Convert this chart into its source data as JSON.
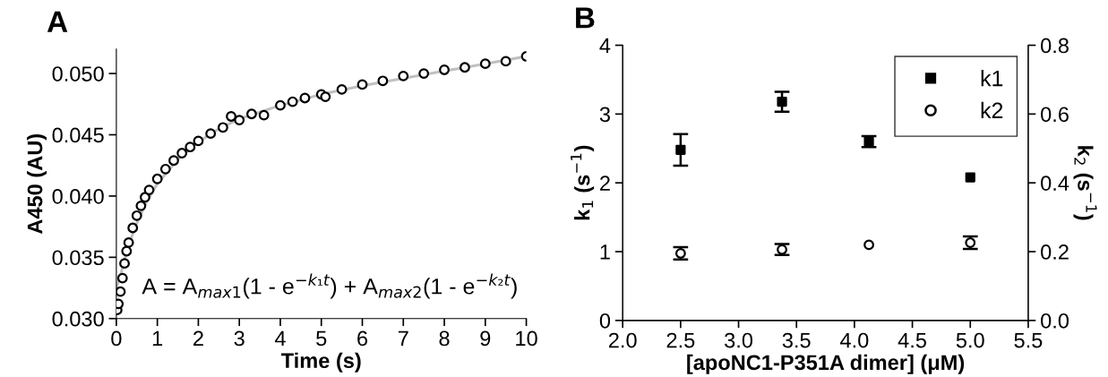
{
  "chart_data": [
    {
      "type": "scatter",
      "xlabel": "Time (s)",
      "ylabel": "A450 (AU)",
      "annotations": [
        "A",
        "A = A$_{max1}$(1 - e$^{−k₁t}$) + A$_{max2}$(1 - e$^{−k₂t}$)"
      ],
      "xlim": [
        0,
        10
      ],
      "xticks": [
        0,
        1,
        2,
        3,
        4,
        5,
        6,
        7,
        8,
        9,
        10
      ],
      "ylim": [
        0.03,
        0.052
      ],
      "yticks": [
        {
          "value": 0.03,
          "label": "0.030"
        },
        {
          "value": 0.035,
          "label": "0.035"
        },
        {
          "value": 0.04,
          "label": "0.040"
        },
        {
          "value": 0.045,
          "label": "0.045"
        },
        {
          "value": 0.05,
          "label": "0.050"
        }
      ],
      "grid": false,
      "legend": false,
      "series": [
        {
          "type": "scatter",
          "marker": "circle",
          "color": "#000000",
          "x": [
            0.02,
            0.05,
            0.1,
            0.15,
            0.2,
            0.25,
            0.3,
            0.4,
            0.5,
            0.6,
            0.7,
            0.8,
            1.0,
            1.2,
            1.4,
            1.6,
            1.8,
            2.0,
            2.3,
            2.6,
            2.8,
            3.0,
            3.3,
            3.6,
            4.0,
            4.3,
            4.6,
            5.0,
            5.1,
            5.5,
            6.0,
            6.5,
            7.0,
            7.5,
            8.0,
            8.5,
            9.0,
            9.5,
            10.0
          ],
          "values": [
            0.0307,
            0.0312,
            0.0322,
            0.0333,
            0.0345,
            0.0355,
            0.0362,
            0.0374,
            0.0384,
            0.0392,
            0.0399,
            0.0405,
            0.0414,
            0.0422,
            0.0429,
            0.0435,
            0.044,
            0.0445,
            0.0451,
            0.0456,
            0.0465,
            0.0462,
            0.0467,
            0.0466,
            0.0474,
            0.0477,
            0.048,
            0.0483,
            0.0481,
            0.0487,
            0.0491,
            0.0494,
            0.0498,
            0.05,
            0.0503,
            0.0505,
            0.0508,
            0.051,
            0.0514
          ]
        },
        {
          "type": "line",
          "marker": "none",
          "line_style": "solid",
          "color": "#c0c0c0",
          "x": [
            0,
            0.1,
            0.2,
            0.3,
            0.5,
            0.75,
            1,
            1.5,
            2,
            2.5,
            3,
            4,
            5,
            6,
            7,
            8,
            9,
            10
          ],
          "values": [
            0.0325,
            0.0335,
            0.0348,
            0.036,
            0.0378,
            0.0396,
            0.041,
            0.043,
            0.0444,
            0.0455,
            0.0463,
            0.0474,
            0.0483,
            0.049,
            0.0496,
            0.0502,
            0.0508,
            0.0514
          ]
        }
      ]
    },
    {
      "type": "scatter",
      "xlabel": "[apoNC1-P351A dimer] (μM)",
      "ylabel": "k$_{1}$ (s$^{−1}$)",
      "y2label": "k$_{2}$ (s$^{−1}$)",
      "annotations": [
        "B"
      ],
      "xlim": [
        2.0,
        5.5
      ],
      "xticks": [
        {
          "value": 2.0,
          "label": "2.0"
        },
        {
          "value": 2.5,
          "label": "2.5"
        },
        {
          "value": 3.0,
          "label": "3.0"
        },
        {
          "value": 3.5,
          "label": "3.5"
        },
        {
          "value": 4.0,
          "label": "4.0"
        },
        {
          "value": 4.5,
          "label": "4.5"
        },
        {
          "value": 5.0,
          "label": "5.0"
        },
        {
          "value": 5.5,
          "label": "5.5"
        }
      ],
      "ylim": [
        0,
        4
      ],
      "yticks": [
        0,
        1,
        2,
        3,
        4
      ],
      "y2lim": [
        0,
        0.8
      ],
      "y2ticks": [
        {
          "value": 0,
          "label": "0.0"
        },
        {
          "value": 0.2,
          "label": "0.2"
        },
        {
          "value": 0.4,
          "label": "0.4"
        },
        {
          "value": 0.6,
          "label": "0.6"
        },
        {
          "value": 0.8,
          "label": "0.8"
        }
      ],
      "grid": false,
      "legend": "top right",
      "x": [
        2.5,
        3.375,
        4.125,
        5.0
      ],
      "series": [
        {
          "name": "k1",
          "axis": "y",
          "marker": "square",
          "color": "#000000",
          "values": [
            2.48,
            3.18,
            2.6,
            2.08
          ],
          "errors": [
            0.23,
            0.145,
            0.08,
            null
          ]
        },
        {
          "name": "k2",
          "axis": "y2",
          "marker": "circle",
          "color": "#000000",
          "values": [
            0.195,
            0.206,
            0.22,
            0.226
          ],
          "errors": [
            0.018,
            0.016,
            null,
            0.018
          ]
        }
      ]
    }
  ]
}
